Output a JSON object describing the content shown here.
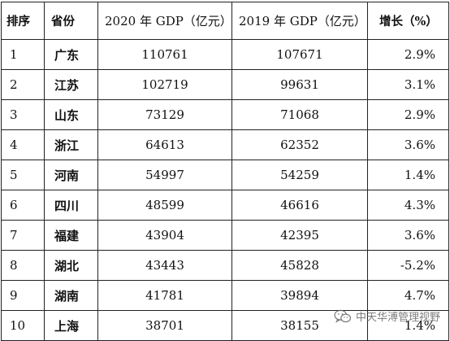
{
  "table": {
    "headers": {
      "rank": "排序",
      "province": "省份",
      "gdp_2020": "2020 年 GDP（亿元）",
      "gdp_2019": "2019 年 GDP（亿元）",
      "growth": "增长（%）"
    },
    "rows": [
      {
        "rank": "1",
        "province": "广东",
        "gdp_2020": "110761",
        "gdp_2019": "107671",
        "growth": "2.9%"
      },
      {
        "rank": "2",
        "province": "江苏",
        "gdp_2020": "102719",
        "gdp_2019": "99631",
        "growth": "3.1%"
      },
      {
        "rank": "3",
        "province": "山东",
        "gdp_2020": "73129",
        "gdp_2019": "71068",
        "growth": "2.9%"
      },
      {
        "rank": "4",
        "province": "浙江",
        "gdp_2020": "64613",
        "gdp_2019": "62352",
        "growth": "3.6%"
      },
      {
        "rank": "5",
        "province": "河南",
        "gdp_2020": "54997",
        "gdp_2019": "54259",
        "growth": "1.4%"
      },
      {
        "rank": "6",
        "province": "四川",
        "gdp_2020": "48599",
        "gdp_2019": "46616",
        "growth": "4.3%"
      },
      {
        "rank": "7",
        "province": "福建",
        "gdp_2020": "43904",
        "gdp_2019": "42395",
        "growth": "3.6%"
      },
      {
        "rank": "8",
        "province": "湖北",
        "gdp_2020": "43443",
        "gdp_2019": "45828",
        "growth": "-5.2%"
      },
      {
        "rank": "9",
        "province": "湖南",
        "gdp_2020": "41781",
        "gdp_2019": "39894",
        "growth": "4.7%"
      },
      {
        "rank": "10",
        "province": "上海",
        "gdp_2020": "38701",
        "gdp_2019": "38155",
        "growth": "1.4%"
      }
    ]
  },
  "watermark": {
    "text": "中天华溥管理视野",
    "icon": "wechat-icon"
  }
}
